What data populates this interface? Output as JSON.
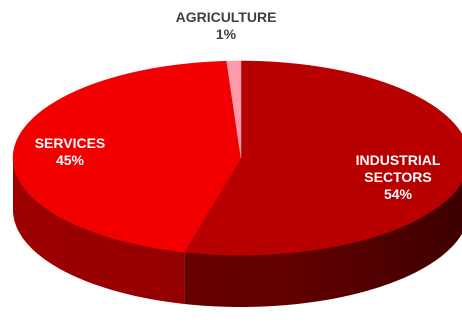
{
  "chart_data": {
    "type": "pie",
    "style": "3d",
    "slices": [
      {
        "label": "INDUSTRIAL SECTORS",
        "label_lines": [
          "INDUSTRIAL",
          "SECTORS"
        ],
        "value": 54,
        "value_label": "54%",
        "color": "#b80000",
        "side_color": "#6e0000",
        "label_color": "#ffffff"
      },
      {
        "label": "AGRICULTURE",
        "label_lines": [
          "AGRICULTURE"
        ],
        "value": 1,
        "value_label": "1%",
        "color": "#ff9aa8",
        "side_color": "#c0606e",
        "label_color": "#404040"
      },
      {
        "label": "SERVICES",
        "label_lines": [
          "SERVICES"
        ],
        "value": 45,
        "value_label": "45%",
        "color": "#f20000",
        "side_color": "#9e0000",
        "label_color": "#ffffff"
      }
    ]
  }
}
